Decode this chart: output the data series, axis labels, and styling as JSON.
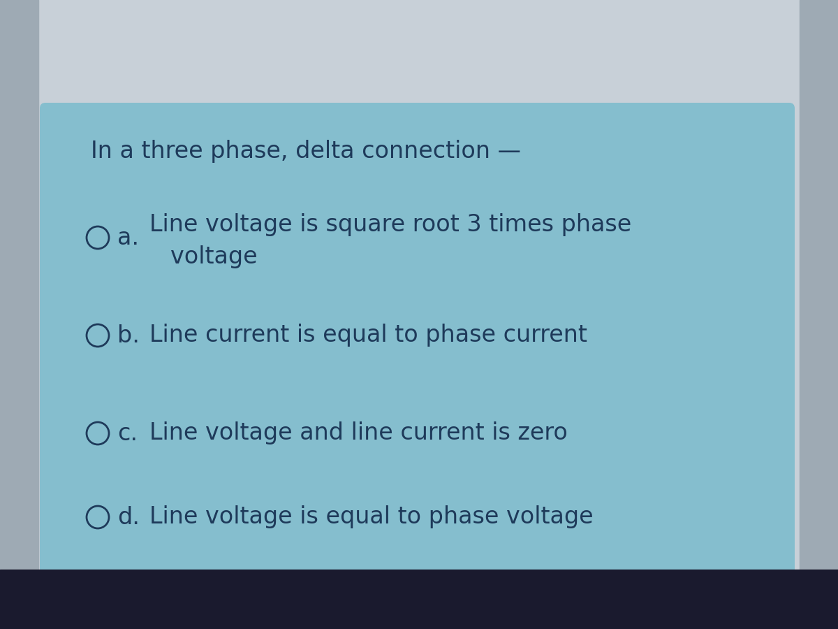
{
  "title": "In a three phase, delta connection —",
  "options": [
    {
      "label": "a.",
      "text1": "Line voltage is square root 3 times phase",
      "text2": "voltage"
    },
    {
      "label": "b.",
      "text1": "Line current is equal to phase current",
      "text2": null
    },
    {
      "label": "c.",
      "text1": "Line voltage and line current is zero",
      "text2": null
    },
    {
      "label": "d.",
      "text1": "Line voltage is equal to phase voltage",
      "text2": null
    }
  ],
  "bg_outer_top": "#c8d0d8",
  "bg_outer_side": "#a8b4bc",
  "bg_inner": "#85bece",
  "text_color": "#1e3a5a",
  "taskbar_color": "#1a1a2e",
  "title_fontsize": 24,
  "option_fontsize": 24,
  "figsize": [
    12,
    9
  ]
}
